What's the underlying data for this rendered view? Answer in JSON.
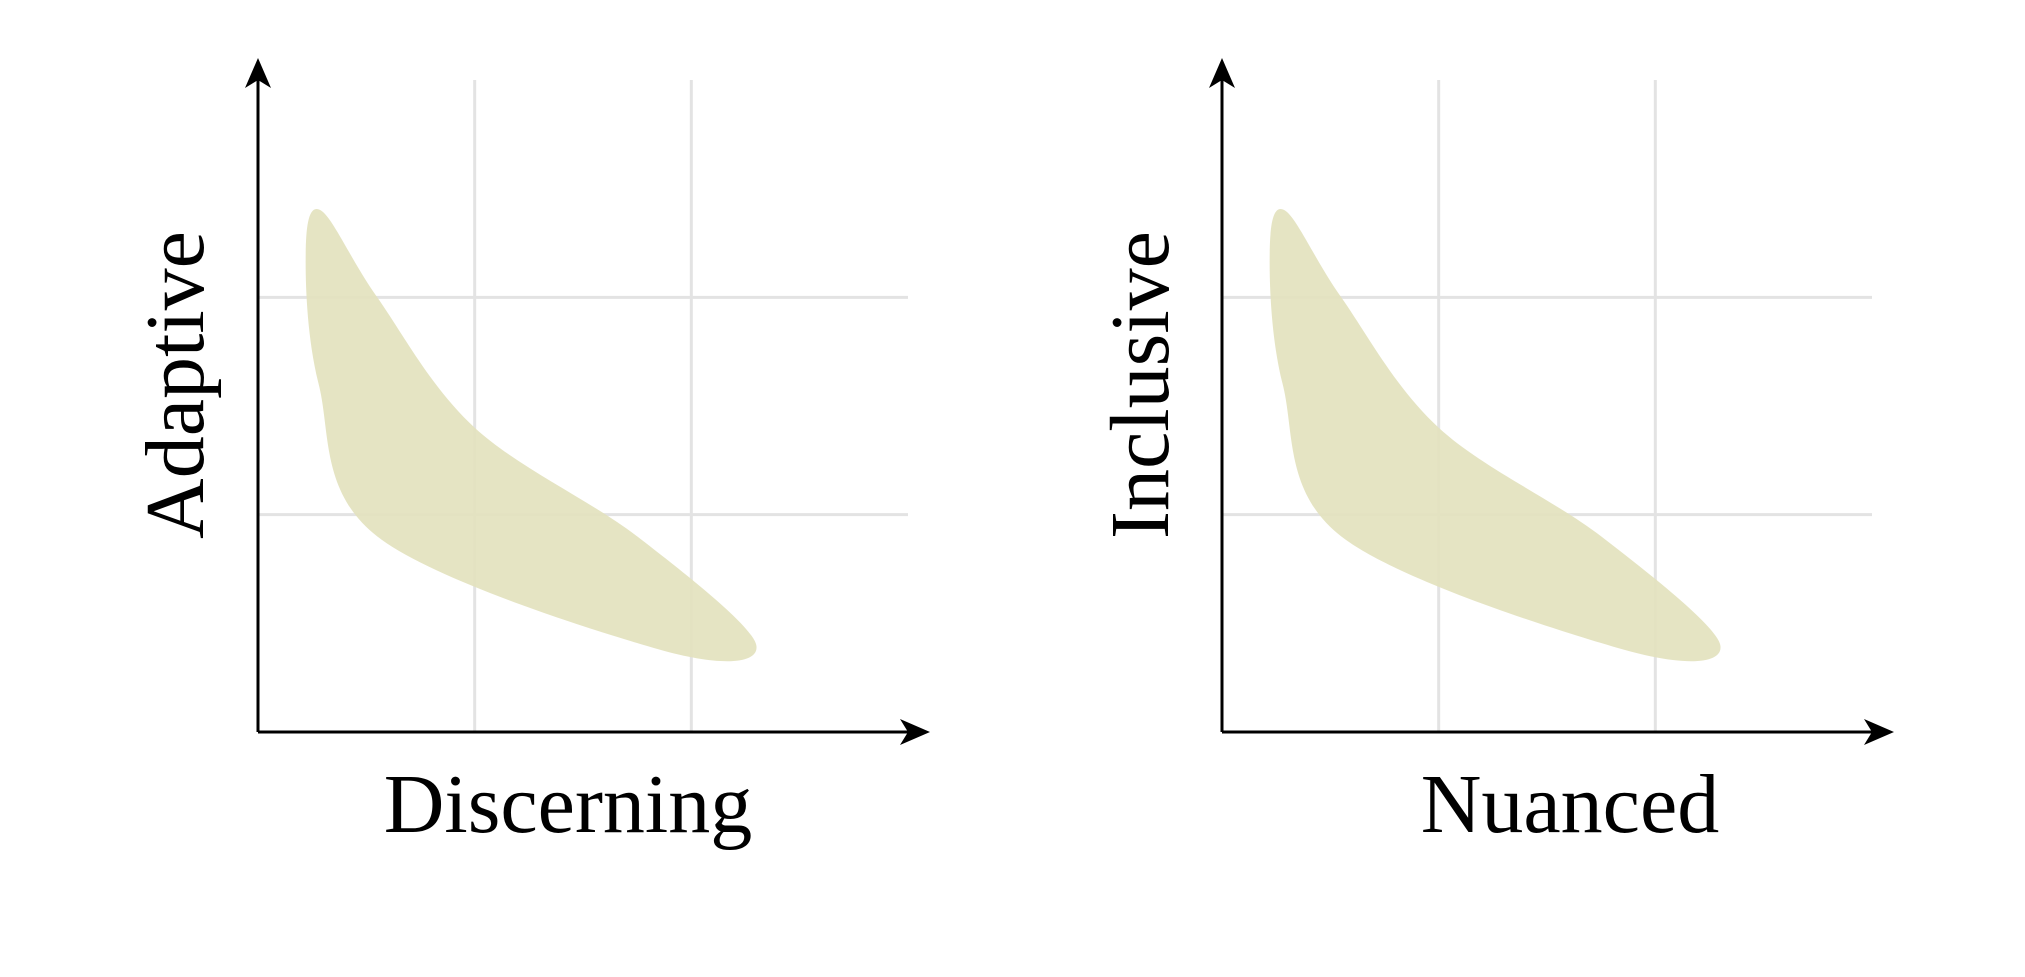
{
  "colors": {
    "region": "#e3e2be",
    "grid": "#e3e3e3",
    "axis": "#000000",
    "background": "#ffffff"
  },
  "chart_data": [
    {
      "type": "area",
      "title": "",
      "xlabel": "Discerning",
      "ylabel": "Adaptive",
      "grid": true,
      "xlim": [
        0,
        3
      ],
      "ylim": [
        0,
        3
      ],
      "tick_labels": false,
      "region": {
        "x": [
          0.29,
          0.55,
          1.0,
          1.75,
          2.3,
          1.85,
          0.55,
          0.28,
          0.22,
          0.29
        ],
        "y": [
          2.4,
          2.0,
          1.4,
          0.9,
          0.4,
          0.38,
          0.9,
          1.6,
          2.2,
          2.4
        ]
      }
    },
    {
      "type": "area",
      "title": "",
      "xlabel": "Nuanced",
      "ylabel": "Inclusive",
      "grid": true,
      "xlim": [
        0,
        3
      ],
      "ylim": [
        0,
        3
      ],
      "tick_labels": false,
      "region": {
        "x": [
          0.29,
          0.55,
          1.0,
          1.75,
          2.3,
          1.85,
          0.55,
          0.28,
          0.22,
          0.29
        ],
        "y": [
          2.4,
          2.0,
          1.4,
          0.9,
          0.4,
          0.38,
          0.9,
          1.6,
          2.2,
          2.4
        ]
      }
    }
  ]
}
